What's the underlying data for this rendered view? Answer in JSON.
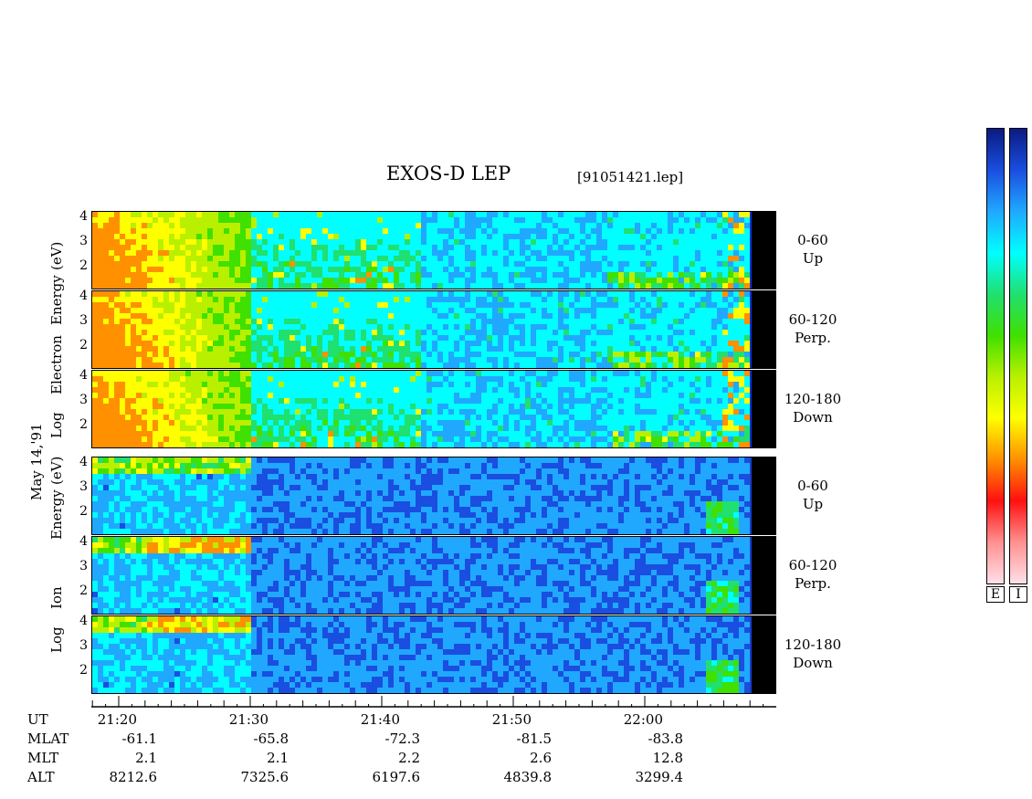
{
  "title": "EXOS-D LEP",
  "file_label": "[91051421.lep]",
  "date_label": "May 14,'91",
  "chart_data": [
    {
      "type": "heatmap",
      "species": "Electron",
      "ylabel_words": [
        "Log",
        "Electron",
        "Energy",
        "(eV)"
      ],
      "yticks": [
        "4",
        "3",
        "2"
      ],
      "ylim": [
        1,
        4.2
      ],
      "x_range": [
        "21:17",
        "22:06"
      ],
      "panels": [
        {
          "range": "0-60",
          "direction": "Up"
        },
        {
          "range": "60-120",
          "direction": "Perp."
        },
        {
          "range": "120-180",
          "direction": "Down"
        }
      ]
    },
    {
      "type": "heatmap",
      "species": "Ion",
      "ylabel_words": [
        "Log",
        "Ion",
        "Energy",
        "(eV)"
      ],
      "yticks": [
        "4",
        "3",
        "2"
      ],
      "ylim": [
        1,
        4.2
      ],
      "x_range": [
        "21:17",
        "22:06"
      ],
      "panels": [
        {
          "range": "0-60",
          "direction": "Up"
        },
        {
          "range": "60-120",
          "direction": "Perp."
        },
        {
          "range": "120-180",
          "direction": "Down"
        }
      ]
    }
  ],
  "x_axis": {
    "row_labels": [
      "UT",
      "MLAT",
      "MLT",
      "ALT"
    ],
    "columns": [
      {
        "UT": "21:20",
        "MLAT": "-61.1",
        "MLT": "2.1",
        "ALT": "8212.6"
      },
      {
        "UT": "21:30",
        "MLAT": "-65.8",
        "MLT": "2.1",
        "ALT": "7325.6"
      },
      {
        "UT": "21:40",
        "MLAT": "-72.3",
        "MLT": "2.2",
        "ALT": "6197.6"
      },
      {
        "UT": "21:50",
        "MLAT": "-81.5",
        "MLT": "2.6",
        "ALT": "4839.8"
      },
      {
        "UT": "22:00",
        "MLAT": "-83.8",
        "MLT": "12.8",
        "ALT": "3299.4"
      }
    ]
  },
  "colorbar": {
    "labels": [
      "E",
      "I"
    ],
    "colors": [
      "#0a1a80",
      "#1a4ee0",
      "#20a8ff",
      "#00ffff",
      "#20e070",
      "#40e000",
      "#b8f000",
      "#ffff00",
      "#ff9000",
      "#ff1010",
      "#ff9090",
      "#ffe0e8"
    ]
  }
}
